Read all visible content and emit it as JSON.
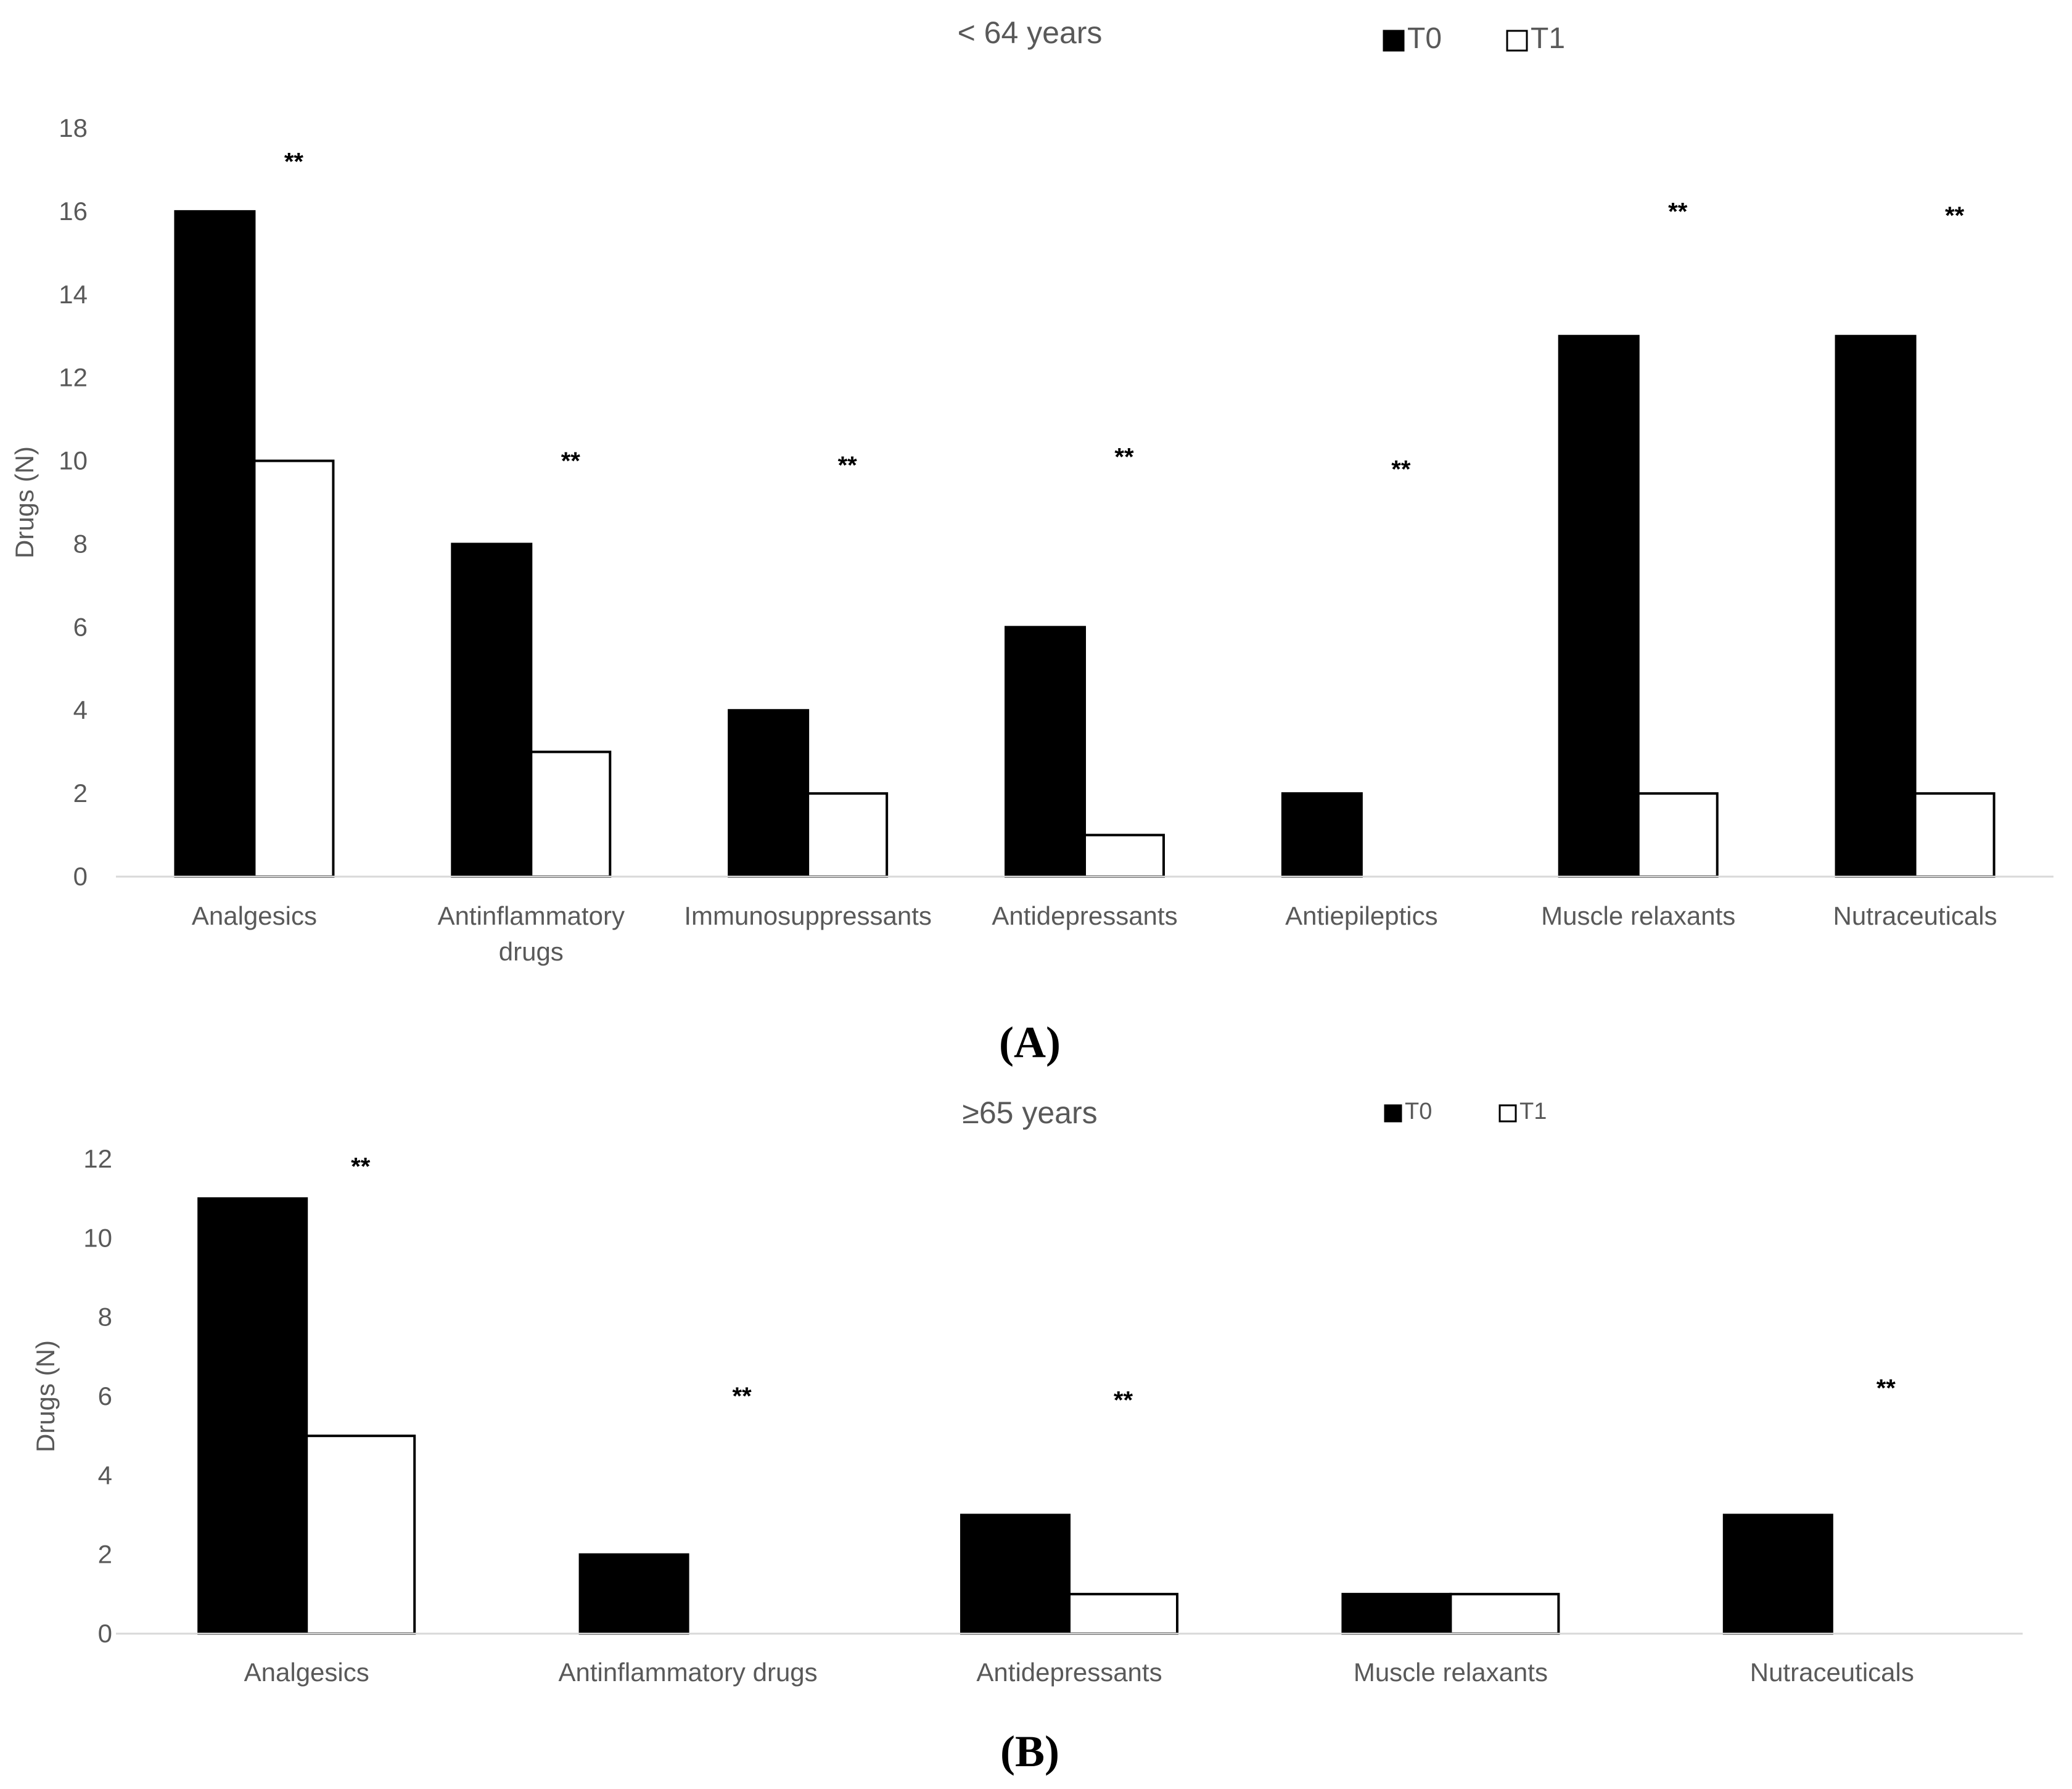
{
  "chart_data": [
    {
      "type": "bar",
      "panel_label": "(A)",
      "title": "< 64 years",
      "ylabel": "Drugs (N)",
      "xlabel": "",
      "ylim": [
        0,
        18
      ],
      "yticks": [
        0,
        2,
        4,
        6,
        8,
        10,
        12,
        14,
        16,
        18
      ],
      "grid": false,
      "legend_position": "top",
      "categories": [
        [
          "Analgesics"
        ],
        [
          "Antinflammatory",
          "drugs"
        ],
        [
          "Immunosuppressants"
        ],
        [
          "Antidepressants"
        ],
        [
          "Antiepileptics"
        ],
        [
          "Muscle relaxants"
        ],
        [
          "Nutraceuticals"
        ]
      ],
      "series": [
        {
          "name": "T0",
          "color": "#000000",
          "values": [
            16,
            8,
            4,
            6,
            2,
            13,
            13
          ]
        },
        {
          "name": "T1",
          "color": "#ffffff",
          "values": [
            10,
            3,
            2,
            1,
            0,
            2,
            2
          ]
        }
      ],
      "annotations": [
        {
          "text": "**",
          "category": 0,
          "y": 17
        },
        {
          "text": "**",
          "category": 1,
          "y": 9.8
        },
        {
          "text": "**",
          "category": 2,
          "y": 9.7
        },
        {
          "text": "**",
          "category": 3,
          "y": 9.9
        },
        {
          "text": "**",
          "category": 4,
          "y": 9.6
        },
        {
          "text": "**",
          "category": 5,
          "y": 15.8
        },
        {
          "text": "**",
          "category": 6,
          "y": 15.7
        }
      ]
    },
    {
      "type": "bar",
      "panel_label": "(B)",
      "title": "≥65 years",
      "ylabel": "Drugs (N)",
      "xlabel": "",
      "ylim": [
        0,
        12
      ],
      "yticks": [
        0,
        2,
        4,
        6,
        8,
        10,
        12
      ],
      "grid": false,
      "legend_position": "top",
      "categories": [
        [
          "Analgesics"
        ],
        [
          "Antinflammatory drugs"
        ],
        [
          "Antidepressants"
        ],
        [
          "Muscle relaxants"
        ],
        [
          "Nutraceuticals"
        ]
      ],
      "series": [
        {
          "name": "T0",
          "color": "#000000",
          "values": [
            11,
            2,
            3,
            1,
            3
          ]
        },
        {
          "name": "T1",
          "color": "#ffffff",
          "values": [
            5,
            0,
            1,
            1,
            0
          ]
        }
      ],
      "annotations": [
        {
          "text": "**",
          "category": 0,
          "y": 11.6
        },
        {
          "text": "**",
          "category": 1,
          "y": 5.8
        },
        {
          "text": "**",
          "category": 2,
          "y": 5.7
        },
        {
          "text": "**",
          "category": 4,
          "y": 6.0
        }
      ]
    }
  ]
}
